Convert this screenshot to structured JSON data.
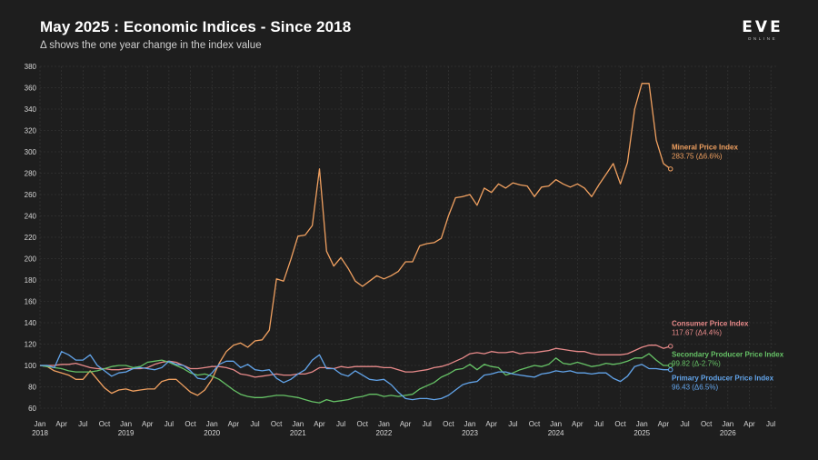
{
  "header": {
    "title": "May 2025 : Economic Indices - Since 2018",
    "subtitle": "Δ shows the one year change in the index value"
  },
  "brand": {
    "logo": "EVE",
    "sub": "ONLINE"
  },
  "chart_data": {
    "type": "line",
    "title": "May 2025 : Economic Indices - Since 2018",
    "subtitle": "Δ shows the one year change in the index value",
    "xlabel": "",
    "ylabel": "",
    "ylim": [
      60,
      380
    ],
    "yticks": [
      60,
      80,
      100,
      120,
      140,
      160,
      180,
      200,
      220,
      240,
      260,
      280,
      300,
      320,
      340,
      360,
      380
    ],
    "x_range_months": [
      0,
      103
    ],
    "grid": true,
    "month_labels": [
      {
        "m": 0,
        "label": "Jan",
        "year": "2018"
      },
      {
        "m": 3,
        "label": "Apr"
      },
      {
        "m": 6,
        "label": "Jul"
      },
      {
        "m": 9,
        "label": "Oct"
      },
      {
        "m": 12,
        "label": "Jan",
        "year": "2019"
      },
      {
        "m": 15,
        "label": "Apr"
      },
      {
        "m": 18,
        "label": "Jul"
      },
      {
        "m": 21,
        "label": "Oct"
      },
      {
        "m": 24,
        "label": "Jan",
        "year": "2020"
      },
      {
        "m": 27,
        "label": "Apr"
      },
      {
        "m": 30,
        "label": "Jul"
      },
      {
        "m": 33,
        "label": "Oct"
      },
      {
        "m": 36,
        "label": "Jan",
        "year": "2021"
      },
      {
        "m": 39,
        "label": "Apr"
      },
      {
        "m": 42,
        "label": "Jul"
      },
      {
        "m": 45,
        "label": "Oct"
      },
      {
        "m": 48,
        "label": "Jan",
        "year": "2022"
      },
      {
        "m": 51,
        "label": "Apr"
      },
      {
        "m": 54,
        "label": "Jul"
      },
      {
        "m": 57,
        "label": "Oct"
      },
      {
        "m": 60,
        "label": "Jan",
        "year": "2023"
      },
      {
        "m": 63,
        "label": "Apr"
      },
      {
        "m": 66,
        "label": "Jul"
      },
      {
        "m": 69,
        "label": "Oct"
      },
      {
        "m": 72,
        "label": "Jan",
        "year": "2024"
      },
      {
        "m": 75,
        "label": "Apr"
      },
      {
        "m": 78,
        "label": "Jul"
      },
      {
        "m": 81,
        "label": "Oct"
      },
      {
        "m": 84,
        "label": "Jan",
        "year": "2025"
      },
      {
        "m": 87,
        "label": "Apr"
      },
      {
        "m": 90,
        "label": "Jul"
      },
      {
        "m": 93,
        "label": "Oct"
      },
      {
        "m": 96,
        "label": "Jan",
        "year": "2026"
      },
      {
        "m": 99,
        "label": "Apr"
      },
      {
        "m": 102,
        "label": "Jul"
      }
    ],
    "series": [
      {
        "name": "Mineral Price Index",
        "value_label": "283.75 (Δ6.6%)",
        "color": "#f0a060",
        "label_at": 302,
        "values": [
          100,
          99,
          95,
          93,
          91,
          87,
          87,
          95,
          87,
          79,
          74,
          77,
          78,
          76,
          77,
          78,
          78,
          85,
          87,
          87,
          81,
          75,
          72,
          77,
          87,
          102,
          113,
          119,
          121,
          117,
          123,
          124,
          133,
          181,
          179,
          199,
          221,
          222,
          231,
          284,
          207,
          193,
          201,
          191,
          179,
          174,
          179,
          184,
          181,
          184,
          188,
          197,
          197,
          212,
          214,
          215,
          219,
          240,
          257,
          258,
          260,
          250,
          266,
          262,
          270,
          266,
          271,
          269,
          268,
          258,
          267,
          268,
          274,
          270,
          267,
          270,
          266,
          258,
          269,
          279,
          289,
          270,
          290,
          340,
          364,
          364,
          311,
          289,
          284
        ]
      },
      {
        "name": "Consumer Price Index",
        "value_label": "117.67 (Δ4.4%)",
        "color": "#e88a8a",
        "label_at": 137,
        "values": [
          100,
          100,
          100,
          101,
          101,
          102,
          100,
          98,
          97,
          97,
          96,
          96,
          97,
          97,
          97,
          98,
          101,
          103,
          104,
          103,
          100,
          97,
          97,
          98,
          99,
          99,
          98,
          96,
          92,
          91,
          89,
          90,
          91,
          92,
          91,
          91,
          92,
          92,
          94,
          98,
          98,
          97,
          99,
          98,
          99,
          99,
          99,
          99,
          98,
          98,
          96,
          94,
          94,
          95,
          96,
          98,
          99,
          101,
          104,
          107,
          111,
          112,
          111,
          113,
          112,
          112,
          113,
          111,
          112,
          112,
          113,
          114,
          116,
          115,
          114,
          113,
          113,
          111,
          110,
          110,
          110,
          110,
          111,
          114,
          117,
          119,
          119,
          116,
          118
        ]
      },
      {
        "name": "Secondary Producer Price Index",
        "value_label": "99.82 (Δ-2.7%)",
        "color": "#66c266",
        "label_at": 108,
        "values": [
          100,
          99,
          98,
          97,
          95,
          94,
          94,
          94,
          95,
          97,
          99,
          100,
          100,
          98,
          99,
          103,
          104,
          105,
          103,
          100,
          97,
          93,
          91,
          92,
          90,
          87,
          82,
          77,
          73,
          71,
          70,
          70,
          71,
          72,
          72,
          71,
          70,
          68,
          66,
          65,
          68,
          66,
          67,
          68,
          70,
          71,
          73,
          73,
          71,
          72,
          71,
          72,
          73,
          78,
          81,
          84,
          89,
          92,
          96,
          97,
          101,
          96,
          101,
          99,
          98,
          91,
          93,
          96,
          98,
          100,
          99,
          101,
          107,
          102,
          101,
          103,
          101,
          99,
          100,
          102,
          101,
          102,
          104,
          107,
          107,
          111,
          105,
          100,
          100
        ]
      },
      {
        "name": "Primary Producer Price Index",
        "value_label": "96.43 (Δ6.5%)",
        "color": "#62a4ea",
        "label_at": 86,
        "values": [
          100,
          100,
          98,
          113,
          110,
          105,
          105,
          110,
          100,
          95,
          90,
          93,
          94,
          97,
          98,
          97,
          96,
          98,
          104,
          101,
          100,
          95,
          88,
          87,
          93,
          101,
          104,
          104,
          98,
          101,
          96,
          95,
          96,
          88,
          84,
          87,
          92,
          96,
          105,
          110,
          97,
          97,
          92,
          90,
          95,
          91,
          87,
          86,
          87,
          82,
          75,
          69,
          68,
          69,
          69,
          68,
          69,
          72,
          77,
          82,
          84,
          85,
          91,
          92,
          94,
          94,
          92,
          91,
          90,
          89,
          92,
          93,
          95,
          94,
          95,
          93,
          93,
          92,
          93,
          93,
          88,
          85,
          90,
          99,
          101,
          97,
          97,
          96,
          96
        ]
      }
    ]
  }
}
